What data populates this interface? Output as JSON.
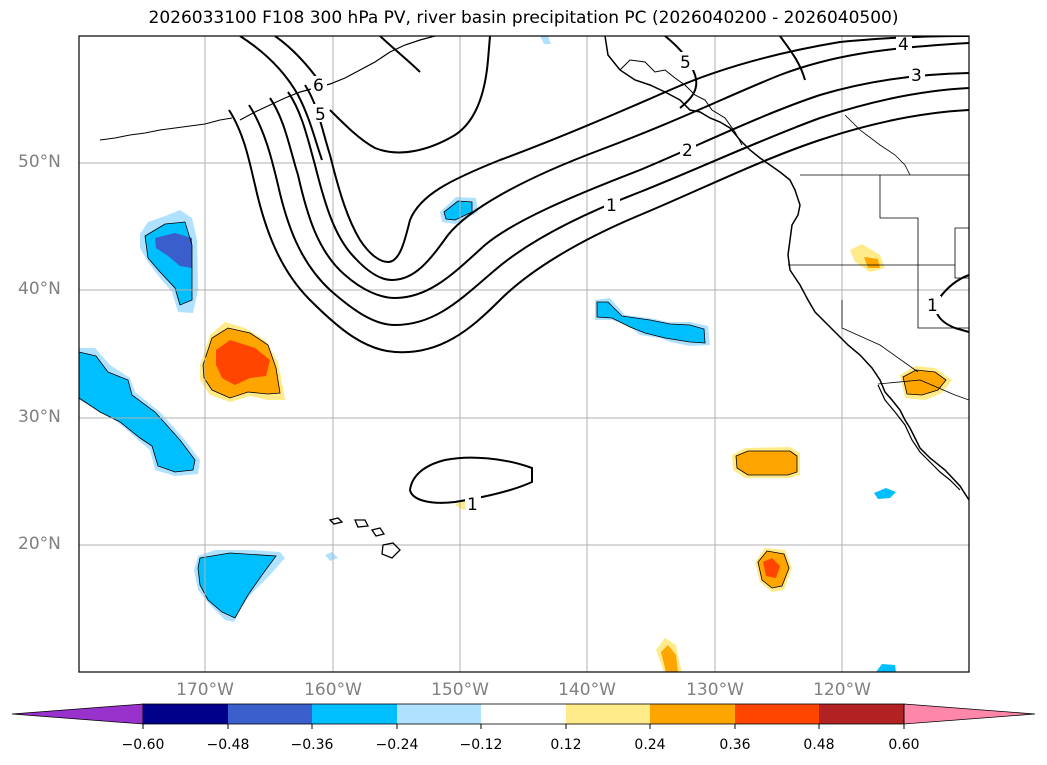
{
  "title": "2026033100 F108 300 hPa PV, river basin precipitation PC (2026040200 - 2026040500)",
  "lat_labels": [
    "50°N",
    "40°N",
    "30°N",
    "20°N"
  ],
  "lon_labels": [
    "170°W",
    "160°W",
    "150°W",
    "140°W",
    "130°W",
    "120°W"
  ],
  "pv_contour_labels": [
    "6",
    "5",
    "5",
    "4",
    "3",
    "2",
    "1",
    "1",
    "1"
  ],
  "colorbar": {
    "ticks": [
      "−0.60",
      "−0.48",
      "−0.36",
      "−0.24",
      "−0.12",
      "0.12",
      "0.24",
      "0.36",
      "0.48",
      "0.60"
    ],
    "colors": [
      "#9932cc",
      "#00008b",
      "#3a5fcd",
      "#00bfff",
      "#b0e2ff",
      "#ffffff",
      "#ffeb8a",
      "#ffa500",
      "#ff4500",
      "#b22222",
      "#ff88aa"
    ]
  },
  "colors": {
    "graticule": "#b0b0b0",
    "coastline": "#000000",
    "axis_label": "#808080"
  }
}
